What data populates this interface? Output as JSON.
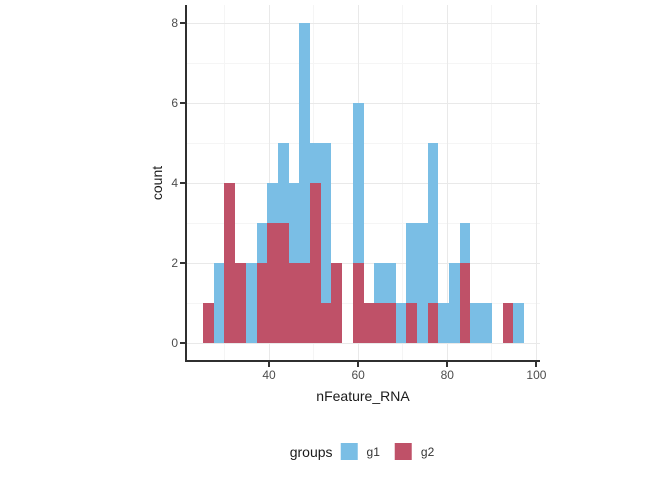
{
  "chart_data": {
    "type": "bar",
    "subtype": "overlaid-histogram",
    "title": "",
    "xlabel": "nFeature_RNA",
    "ylabel": "count",
    "binwidth": 2.4,
    "bin_left_edges": [
      25.2,
      27.6,
      30.0,
      32.4,
      34.8,
      37.2,
      39.6,
      42.0,
      44.4,
      46.8,
      49.2,
      51.6,
      54.0,
      56.4,
      58.8,
      61.2,
      63.6,
      66.0,
      68.4,
      70.8,
      73.2,
      75.6,
      78.0,
      80.4,
      82.8,
      85.2,
      87.6,
      90.0,
      92.4,
      94.8
    ],
    "series": [
      {
        "name": "g1",
        "color": "#7abee5",
        "counts": [
          0,
          2,
          0,
          0,
          2,
          3,
          4,
          5,
          4,
          8,
          5,
          5,
          0,
          0,
          6,
          0,
          2,
          2,
          1,
          3,
          3,
          5,
          1,
          2,
          3,
          1,
          1,
          0,
          0,
          1
        ]
      },
      {
        "name": "g2",
        "color": "#bf5168",
        "counts": [
          1,
          0,
          4,
          2,
          0,
          2,
          3,
          3,
          2,
          2,
          4,
          1,
          2,
          0,
          2,
          1,
          1,
          1,
          0,
          1,
          0,
          1,
          0,
          0,
          2,
          0,
          0,
          0,
          1,
          0
        ]
      }
    ],
    "draw_order_note": "g1 drawn first, g2 drawn in front (position identity overlay)",
    "x_ticks": [
      40,
      60,
      80,
      100
    ],
    "y_ticks": [
      0,
      2,
      4,
      6,
      8
    ],
    "x_minor_gridlines": [
      30,
      50,
      70,
      90
    ],
    "y_minor_gridlines": [
      1,
      3,
      5,
      7
    ],
    "xlim": [
      21.6,
      100.8
    ],
    "ylim": [
      -0.42,
      8.46
    ],
    "grid": true,
    "legend_position": "bottom"
  },
  "axis": {
    "x_tick_labels": [
      "40",
      "60",
      "80",
      "100"
    ],
    "y_tick_labels": [
      "0",
      "2",
      "4",
      "6",
      "8"
    ]
  },
  "legend": {
    "title": "groups",
    "items": [
      {
        "label": "g1",
        "color": "#7abee5"
      },
      {
        "label": "g2",
        "color": "#bf5168"
      }
    ]
  },
  "colors": {
    "g1_blue": "#7abee5",
    "g2_red": "#bf5168",
    "axis_line": "#2f2f2f",
    "tick_mark": "#333333",
    "tick_text": "#4d4d4d",
    "grid_major": "#e9e9e9",
    "grid_minor": "#f5f5f5",
    "background": "#ffffff"
  }
}
